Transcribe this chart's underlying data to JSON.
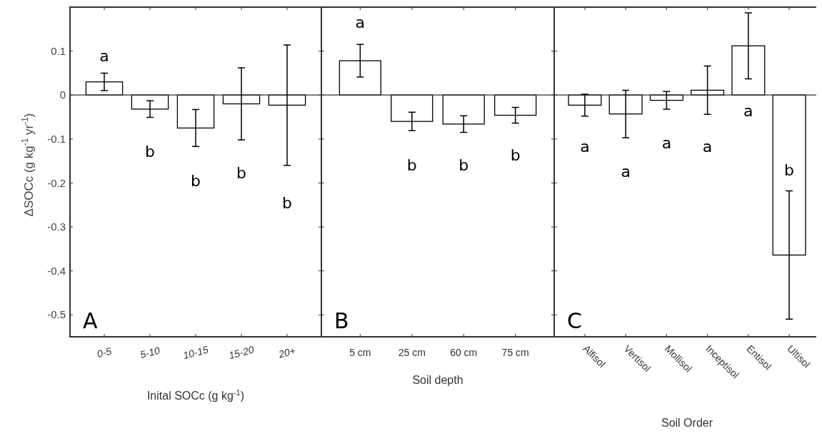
{
  "chart_data": [
    {
      "type": "bar",
      "ylabel": "ΔSOCc (g kg$^{-1}$ yr$^{-1}$)",
      "xlabel": "Inital SOCc (g kg$^{-1}$)",
      "categories": [
        "0-5",
        "5-10",
        "10-15",
        "15-20",
        "20+"
      ],
      "values": [
        0.03,
        -0.032,
        -0.075,
        -0.02,
        -0.023
      ],
      "errors": [
        0.02,
        0.019,
        0.042,
        0.082,
        0.137
      ],
      "color": "#ffffff",
      "ylim": [
        -0.55,
        0.2
      ],
      "yticks": [
        -0.5,
        -0.4,
        -0.3,
        -0.2,
        -0.1,
        0,
        0.1
      ],
      "annotations": [
        "A",
        "a",
        "b",
        "b",
        "b",
        "b"
      ]
    },
    {
      "type": "bar",
      "xlabel": "Soil depth",
      "categories": [
        "5 cm",
        "25 cm",
        "60 cm",
        "75 cm"
      ],
      "values": [
        0.078,
        -0.06,
        -0.066,
        -0.046
      ],
      "errors": [
        0.037,
        0.021,
        0.019,
        0.018
      ],
      "color": "#ffffff",
      "ylim": [
        -0.55,
        0.2
      ],
      "yticks": [
        -0.5,
        -0.4,
        -0.3,
        -0.2,
        -0.1,
        0,
        0.1
      ],
      "tick_labels": "x",
      "annotations": [
        "B",
        "a",
        "b",
        "b",
        "b"
      ]
    },
    {
      "type": "bar",
      "xlabel": "Soil Order",
      "categories": [
        "Alfisol",
        "Vertisol",
        "Mollisol",
        "Inceptisol",
        "Entisol",
        "Ultisol"
      ],
      "values": [
        -0.023,
        -0.043,
        -0.012,
        0.011,
        0.112,
        -0.364
      ],
      "errors": [
        0.025,
        0.054,
        0.02,
        0.055,
        0.075,
        0.146
      ],
      "color": "#ffffff",
      "ylim": [
        -0.55,
        0.2
      ],
      "yticks": [
        -0.5,
        -0.4,
        -0.3,
        -0.2,
        -0.1,
        0,
        0.1
      ],
      "tick_labels": "x",
      "annotations": [
        "C",
        "a",
        "a",
        "a",
        "a",
        "a",
        "b"
      ]
    }
  ]
}
